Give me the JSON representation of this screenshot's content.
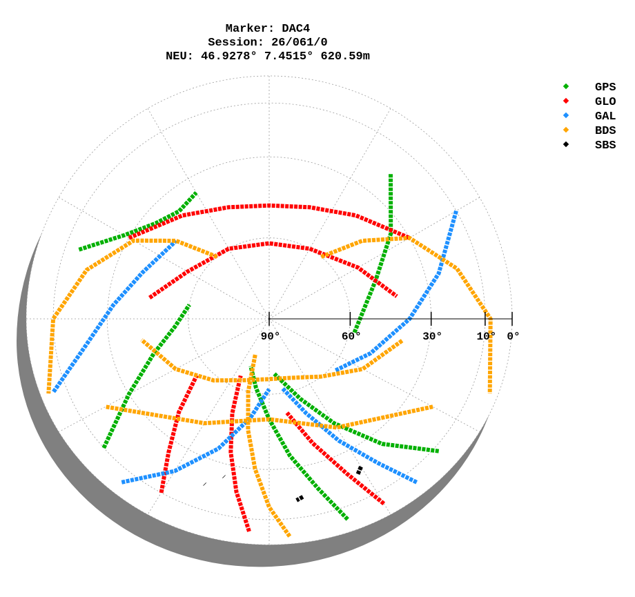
{
  "chart_data": {
    "type": "skyplot",
    "title": [
      "Marker: DAC4",
      "Session: 26/061/0",
      "NEU: 46.9278° 7.4515° 620.59m"
    ],
    "ylim": [
      90,
      0
    ],
    "yticks": [
      {
        "value": 90,
        "label": "90°"
      },
      {
        "value": 60,
        "label": "60°"
      },
      {
        "value": 30,
        "label": "30°"
      },
      {
        "value": 10,
        "label": "10°"
      },
      {
        "value": 0,
        "label": "0°"
      }
    ],
    "grid": true,
    "legend": "upper right",
    "series": [
      {
        "name": "GPS",
        "color": "#00b000",
        "azimuth": [
          160,
          165,
          172,
          180,
          190,
          200,
          null,
          230,
          240,
          252,
          265,
          280,
          null,
          290,
          300,
          310,
          320,
          330,
          null,
          40,
          55,
          70,
          85,
          100,
          null,
          130,
          140,
          150,
          160,
          175
        ],
        "elevation": [
          5,
          20,
          35,
          50,
          62,
          70,
          null,
          10,
          30,
          45,
          55,
          60,
          null,
          15,
          28,
          35,
          38,
          36,
          null,
          20,
          35,
          48,
          55,
          58,
          null,
          8,
          25,
          42,
          56,
          68
        ]
      },
      {
        "name": "GLO",
        "color": "#ff0000",
        "azimuth": [
          300,
          320,
          340,
          0,
          20,
          40,
          60,
          null,
          280,
          300,
          330,
          0,
          30,
          60,
          80,
          null,
          185,
          190,
          195,
          200,
          205,
          null,
          150,
          155,
          162,
          170,
          null,
          210,
          215,
          222,
          230
        ],
        "elevation": [
          30,
          40,
          46,
          48,
          46,
          40,
          30,
          null,
          45,
          55,
          60,
          62,
          60,
          52,
          42,
          null,
          5,
          20,
          35,
          50,
          65,
          null,
          5,
          22,
          38,
          52,
          null,
          10,
          25,
          40,
          55
        ]
      },
      {
        "name": "GAL",
        "color": "#1e90ff",
        "azimuth": [
          220,
          210,
          200,
          190,
          180,
          null,
          250,
          260,
          275,
          290,
          310,
          null,
          60,
          75,
          90,
          110,
          130,
          null,
          140,
          145,
          152,
          160,
          170
        ],
        "elevation": [
          5,
          20,
          35,
          50,
          62,
          null,
          5,
          20,
          32,
          40,
          45,
          null,
          10,
          25,
          38,
          50,
          58,
          null,
          5,
          20,
          35,
          50,
          62
        ]
      },
      {
        "name": "BDS",
        "color": "#ffa500",
        "azimuth": [
          100,
          120,
          140,
          160,
          180,
          200,
          220,
          240,
          260,
          null,
          120,
          150,
          180,
          210,
          240,
          null,
          40,
          50,
          60,
          75,
          90,
          110,
          null,
          320,
          310,
          300,
          285,
          270,
          250,
          null,
          175,
          180,
          185,
          190,
          195,
          200
        ],
        "elevation": [
          40,
          50,
          60,
          65,
          66,
          64,
          58,
          50,
          42,
          null,
          20,
          40,
          50,
          42,
          20,
          null,
          60,
          45,
          30,
          18,
          8,
          3,
          null,
          60,
          45,
          32,
          20,
          10,
          3,
          null,
          3,
          15,
          30,
          45,
          60,
          75
        ]
      },
      {
        "name": "SBS",
        "color": "#000000",
        "azimuth": [
          150,
          152,
          null,
          195,
          null,
          200,
          null,
          170,
          172
        ],
        "elevation": [
          22,
          20,
          null,
          25,
          null,
          20,
          null,
          18,
          17
        ]
      }
    ]
  }
}
